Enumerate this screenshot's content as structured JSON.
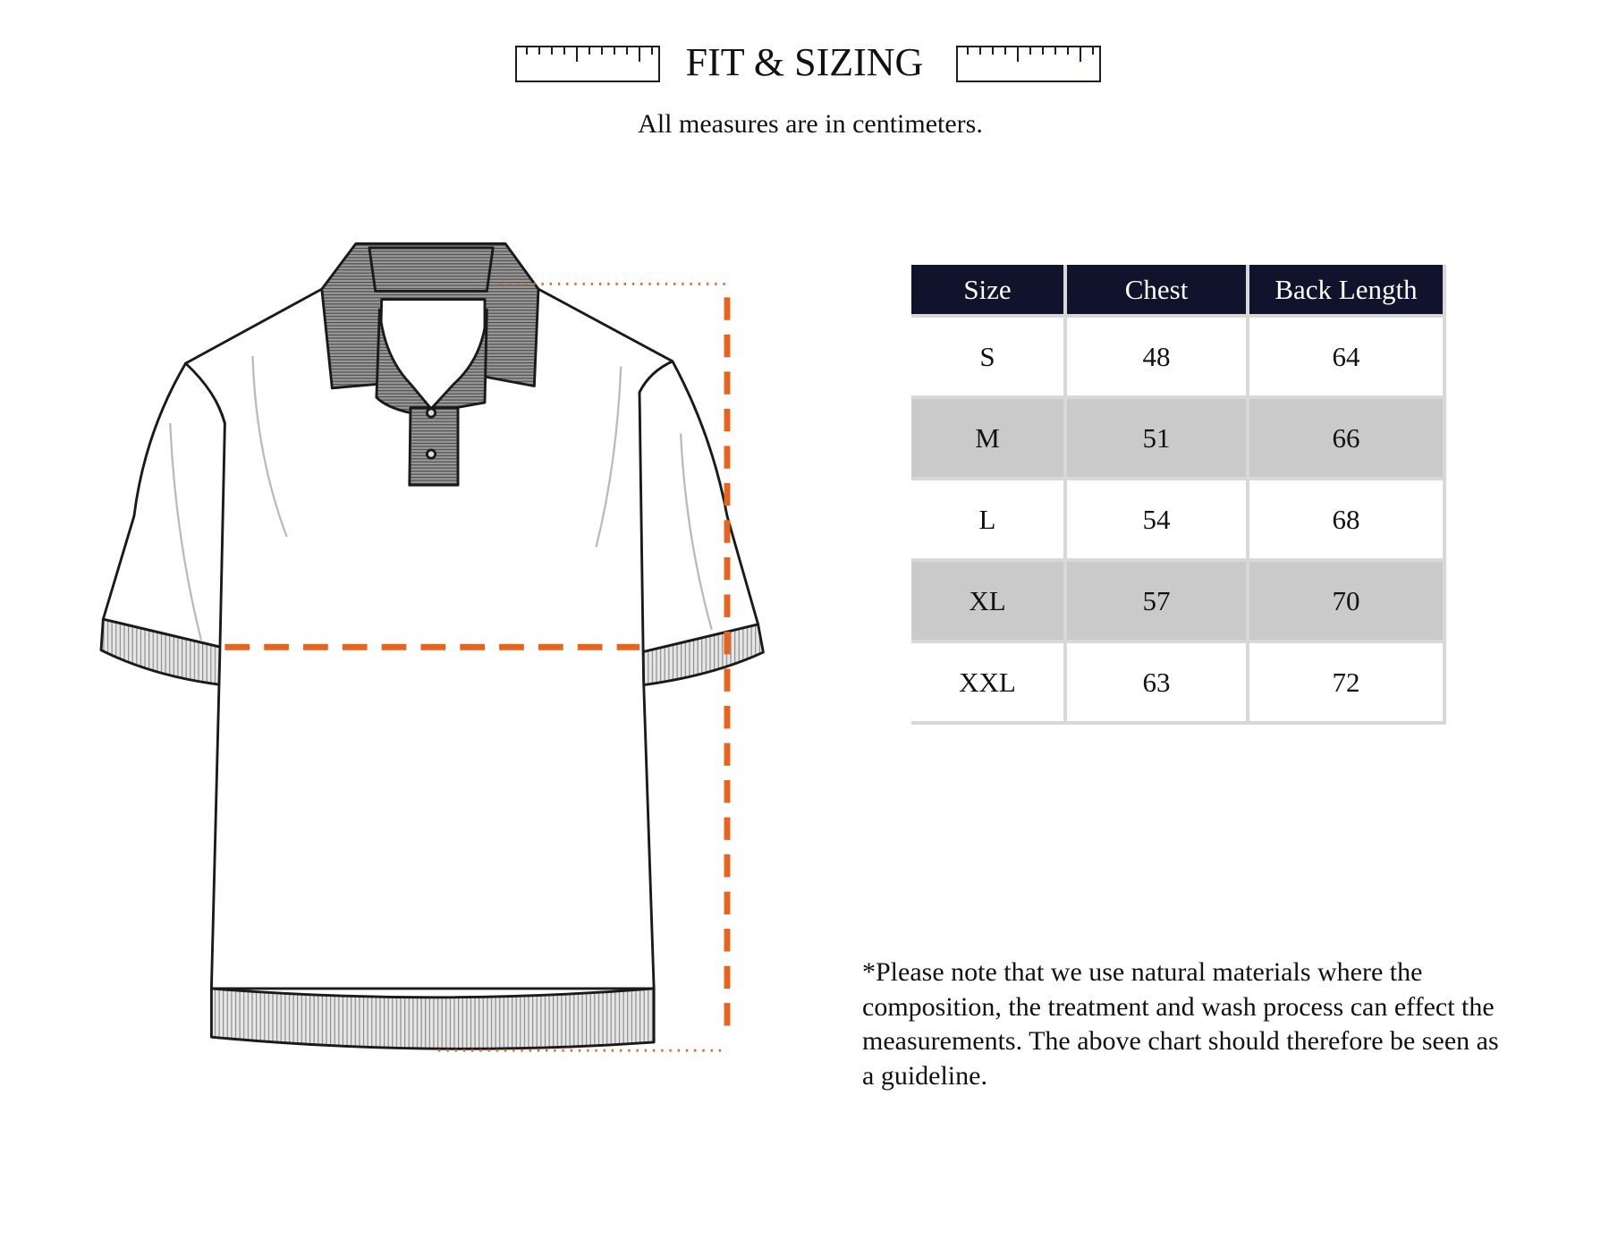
{
  "header": {
    "title": "FIT & SIZING",
    "subtitle": "All measures are in centimeters.",
    "icons": [
      "ruler-icon",
      "ruler-icon"
    ]
  },
  "size_table": {
    "columns": [
      "Size",
      "Chest",
      "Back Length"
    ],
    "rows": [
      [
        "S",
        "48",
        "64"
      ],
      [
        "M",
        "51",
        "66"
      ],
      [
        "L",
        "54",
        "68"
      ],
      [
        "XL",
        "57",
        "70"
      ],
      [
        "XXL",
        "63",
        "72"
      ]
    ],
    "header_color": "#10132b",
    "stripe_color": "#cacaca"
  },
  "illustration": {
    "subject": "polo-shirt-diagram",
    "measure_line_color": "#e8631c"
  },
  "note": "*Please note that we use natural materials where the composition, the treatment and wash process can effect the measurements. The above chart should therefore be seen as a guideline."
}
